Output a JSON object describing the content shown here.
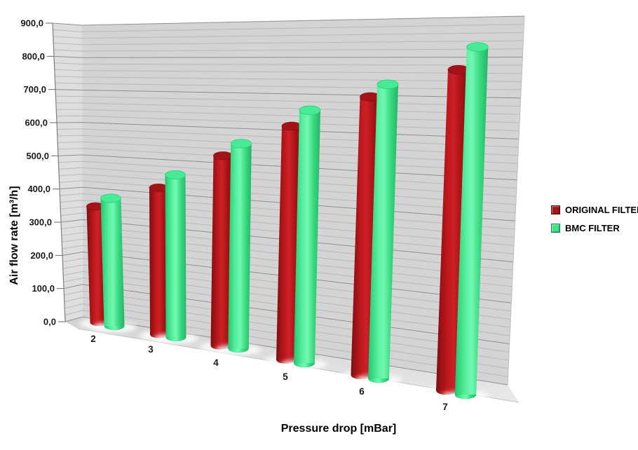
{
  "chart_data": {
    "type": "bar",
    "variant": "3d-cylinder-clustered",
    "title": "",
    "xlabel": "Pressure drop [mBar]",
    "ylabel": "Air flow rate [m³/h]",
    "categories": [
      "2",
      "3",
      "4",
      "5",
      "6",
      "7"
    ],
    "series": [
      {
        "name": "ORIGINAL FILTER",
        "color": "#a31318",
        "values": [
          350,
          420,
          510,
          600,
          690,
          770
        ]
      },
      {
        "name": "BMC FILTER",
        "color": "#3fe58b",
        "values": [
          385,
          465,
          550,
          650,
          730,
          835
        ]
      }
    ],
    "ylim": [
      0,
      900
    ],
    "ytick_step": 100,
    "minor_grid_step": 20,
    "ytick_labels": [
      "0,0",
      "100,0",
      "200,0",
      "300,0",
      "400,0",
      "500,0",
      "600,0",
      "700,0",
      "800,0",
      "900,0"
    ],
    "grid": true,
    "legend_position": "right",
    "wall_color": "#d4d4d4",
    "side_wall_color": "#dedede",
    "floor_color": "#dcdcdc"
  }
}
